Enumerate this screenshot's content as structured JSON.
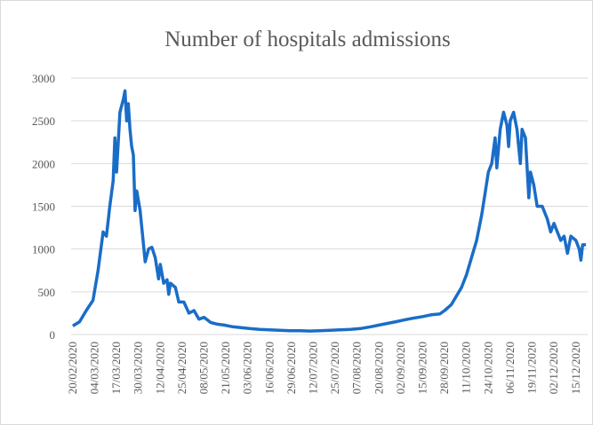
{
  "chart_data": {
    "type": "line",
    "title": "Number of hospitals admissions",
    "x": [
      "20/02/2020",
      "24/02/2020",
      "28/02/2020",
      "03/03/2020",
      "06/03/2020",
      "09/03/2020",
      "11/03/2020",
      "13/03/2020",
      "15/03/2020",
      "16/03/2020",
      "17/03/2020",
      "19/03/2020",
      "21/03/2020",
      "22/03/2020",
      "23/03/2020",
      "24/03/2020",
      "25/03/2020",
      "26/03/2020",
      "27/03/2020",
      "28/03/2020",
      "29/03/2020",
      "31/03/2020",
      "03/04/2020",
      "05/04/2020",
      "07/04/2020",
      "09/04/2020",
      "11/04/2020",
      "12/04/2020",
      "14/04/2020",
      "16/04/2020",
      "17/04/2020",
      "18/04/2020",
      "21/04/2020",
      "23/04/2020",
      "26/04/2020",
      "29/04/2020",
      "02/05/2020",
      "05/05/2020",
      "08/05/2020",
      "12/05/2020",
      "16/05/2020",
      "20/05/2020",
      "25/05/2020",
      "30/05/2020",
      "04/06/2020",
      "10/06/2020",
      "16/06/2020",
      "22/06/2020",
      "28/06/2020",
      "04/07/2020",
      "10/07/2020",
      "16/07/2020",
      "22/07/2020",
      "28/07/2020",
      "03/08/2020",
      "09/08/2020",
      "15/08/2020",
      "20/08/2020",
      "25/08/2020",
      "30/08/2020",
      "04/09/2020",
      "09/09/2020",
      "15/09/2020",
      "20/09/2020",
      "25/09/2020",
      "28/09/2020",
      "02/10/2020",
      "05/10/2020",
      "08/10/2020",
      "11/10/2020",
      "14/10/2020",
      "17/10/2020",
      "20/10/2020",
      "22/10/2020",
      "24/10/2020",
      "26/10/2020",
      "28/10/2020",
      "29/10/2020",
      "31/10/2020",
      "02/11/2020",
      "04/11/2020",
      "05/11/2020",
      "06/11/2020",
      "08/11/2020",
      "10/11/2020",
      "12/11/2020",
      "13/11/2020",
      "15/11/2020",
      "17/11/2020",
      "18/11/2020",
      "20/11/2020",
      "22/11/2020",
      "25/11/2020",
      "28/11/2020",
      "30/11/2020",
      "02/12/2020",
      "04/12/2020",
      "06/12/2020",
      "08/12/2020",
      "10/12/2020",
      "12/12/2020",
      "15/12/2020",
      "17/12/2020",
      "18/12/2020",
      "19/12/2020",
      "21/12/2020"
    ],
    "series": [
      {
        "color": "#1a6dc7",
        "values": [
          100,
          150,
          280,
          400,
          750,
          1200,
          1150,
          1500,
          1800,
          2300,
          1900,
          2600,
          2750,
          2850,
          2500,
          2700,
          2400,
          2200,
          2100,
          1450,
          1680,
          1450,
          850,
          1000,
          1020,
          900,
          650,
          820,
          600,
          640,
          470,
          600,
          550,
          380,
          380,
          250,
          280,
          180,
          200,
          140,
          120,
          110,
          90,
          80,
          70,
          60,
          55,
          50,
          45,
          45,
          40,
          45,
          50,
          55,
          60,
          70,
          90,
          110,
          130,
          150,
          170,
          190,
          210,
          230,
          240,
          280,
          350,
          450,
          550,
          700,
          900,
          1100,
          1400,
          1650,
          1900,
          2000,
          2300,
          1950,
          2400,
          2600,
          2450,
          2200,
          2500,
          2600,
          2400,
          2000,
          2400,
          2300,
          1600,
          1900,
          1750,
          1500,
          1500,
          1350,
          1200,
          1300,
          1200,
          1100,
          1150,
          950,
          1150,
          1100,
          1000,
          870,
          1050,
          1050
        ]
      }
    ],
    "xlim": [
      "19/02/2020",
      "22/12/2020"
    ],
    "xticks": [
      "20/02/2020",
      "04/03/2020",
      "17/03/2020",
      "30/03/2020",
      "12/04/2020",
      "25/04/2020",
      "08/05/2020",
      "21/05/2020",
      "03/06/2020",
      "16/06/2020",
      "29/06/2020",
      "12/07/2020",
      "25/07/2020",
      "07/08/2020",
      "20/08/2020",
      "02/09/2020",
      "15/09/2020",
      "28/09/2020",
      "11/10/2020",
      "24/10/2020",
      "06/11/2020",
      "19/11/2020",
      "02/12/2020",
      "15/12/2020"
    ],
    "ylim": [
      0,
      3000
    ],
    "yticks": [
      0,
      500,
      1000,
      1500,
      2000,
      2500,
      3000
    ],
    "grid": true
  }
}
